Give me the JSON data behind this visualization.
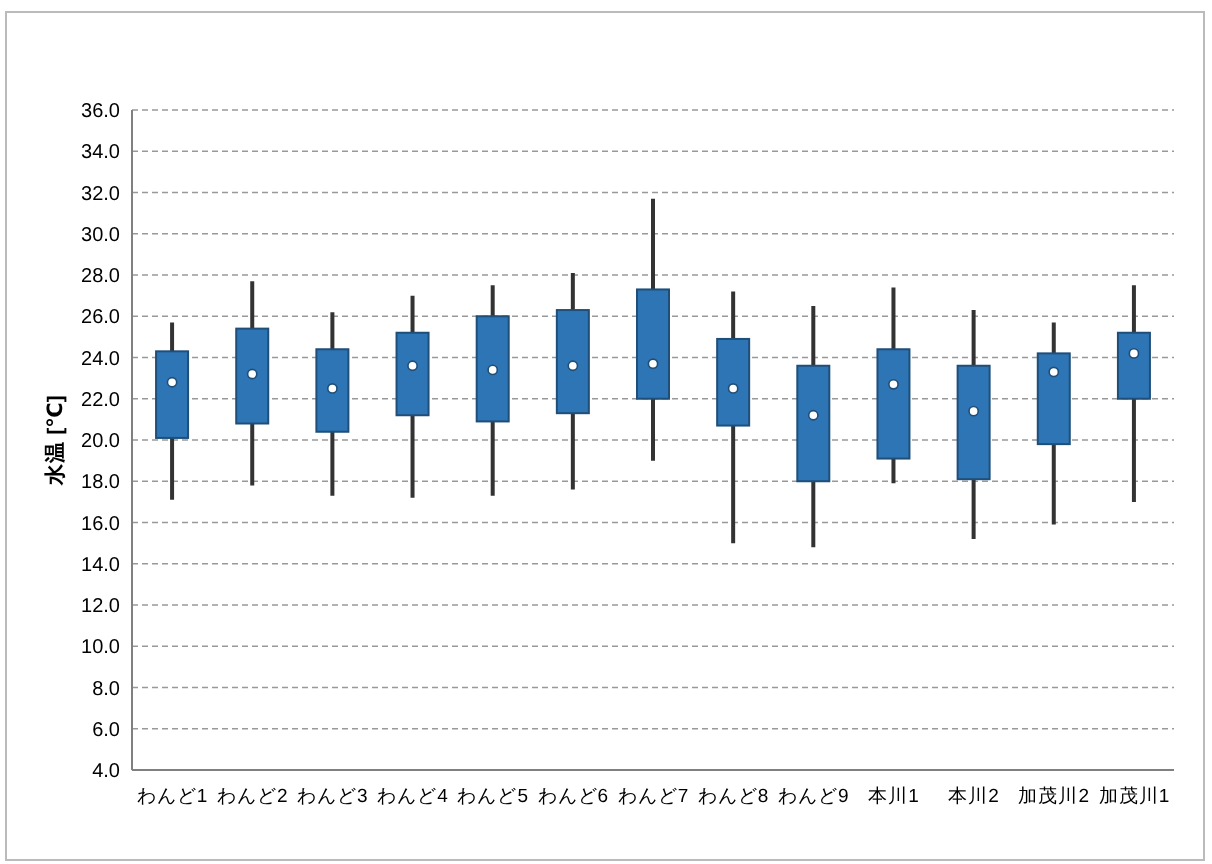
{
  "chart_data": {
    "type": "box",
    "ylabel": "水温 [℃]",
    "categories": [
      "わんど1",
      "わんど2",
      "わんど3",
      "わんど4",
      "わんど5",
      "わんど6",
      "わんど7",
      "わんど8",
      "わんど9",
      "本川1",
      "本川2",
      "加茂川2",
      "加茂川1"
    ],
    "series": [
      {
        "color": "#2e75b6",
        "boxes": [
          {
            "low": 17.1,
            "q1": 20.1,
            "q3": 24.3,
            "high": 25.7,
            "mean": 22.8
          },
          {
            "low": 17.8,
            "q1": 20.8,
            "q3": 25.4,
            "high": 27.7,
            "mean": 23.2
          },
          {
            "low": 17.3,
            "q1": 20.4,
            "q3": 24.4,
            "high": 26.2,
            "mean": 22.5
          },
          {
            "low": 17.2,
            "q1": 21.2,
            "q3": 25.2,
            "high": 27.0,
            "mean": 23.6
          },
          {
            "low": 17.3,
            "q1": 20.9,
            "q3": 26.0,
            "high": 27.5,
            "mean": 23.4
          },
          {
            "low": 17.6,
            "q1": 21.3,
            "q3": 26.3,
            "high": 28.1,
            "mean": 23.6
          },
          {
            "low": 19.0,
            "q1": 22.0,
            "q3": 27.3,
            "high": 31.7,
            "mean": 23.7
          },
          {
            "low": 15.0,
            "q1": 20.7,
            "q3": 24.9,
            "high": 27.2,
            "mean": 22.5
          },
          {
            "low": 14.8,
            "q1": 18.0,
            "q3": 23.6,
            "high": 26.5,
            "mean": 21.2
          },
          {
            "low": 17.9,
            "q1": 19.1,
            "q3": 24.4,
            "high": 27.4,
            "mean": 22.7
          },
          {
            "low": 15.2,
            "q1": 18.1,
            "q3": 23.6,
            "high": 26.3,
            "mean": 21.4
          },
          {
            "low": 15.9,
            "q1": 19.8,
            "q3": 24.2,
            "high": 25.7,
            "mean": 23.3
          },
          {
            "low": 17.0,
            "q1": 22.0,
            "q3": 25.2,
            "high": 27.5,
            "mean": 24.2
          }
        ]
      }
    ],
    "ylim": [
      4,
      36
    ],
    "yticks": [
      {
        "value": 4,
        "label": "4.0"
      },
      {
        "value": 6,
        "label": "6.0"
      },
      {
        "value": 8,
        "label": "8.0"
      },
      {
        "value": 10,
        "label": "10.0"
      },
      {
        "value": 12,
        "label": "12.0"
      },
      {
        "value": 14,
        "label": "14.0"
      },
      {
        "value": 16,
        "label": "16.0"
      },
      {
        "value": 18,
        "label": "18.0"
      },
      {
        "value": 20,
        "label": "20.0"
      },
      {
        "value": 22,
        "label": "22.0"
      },
      {
        "value": 24,
        "label": "24.0"
      },
      {
        "value": 26,
        "label": "26.0"
      },
      {
        "value": 28,
        "label": "28.0"
      },
      {
        "value": 30,
        "label": "30.0"
      },
      {
        "value": 32,
        "label": "32.0"
      },
      {
        "value": 34,
        "label": "34.0"
      },
      {
        "value": 36,
        "label": "36.0"
      }
    ],
    "grid": "y"
  }
}
